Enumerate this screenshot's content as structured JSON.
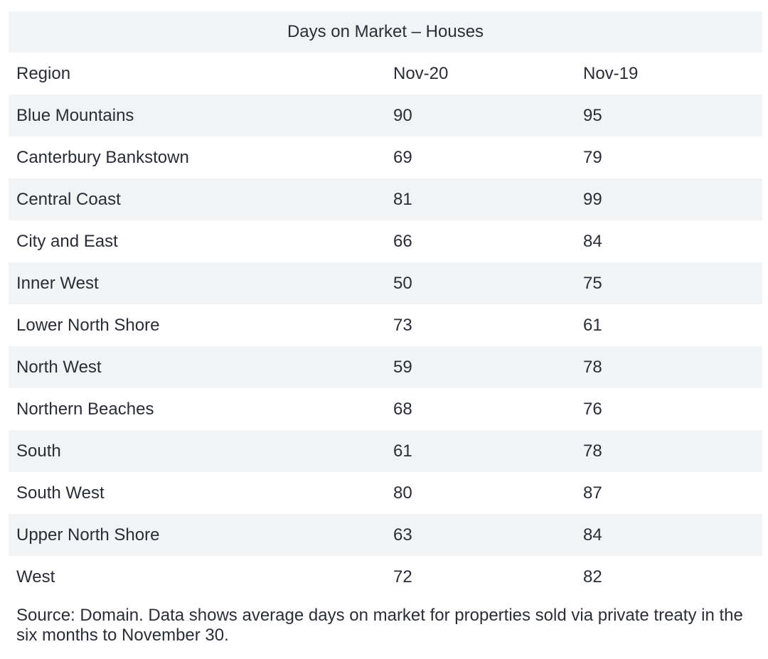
{
  "chart_data": {
    "type": "table",
    "title": "Days on Market – Houses",
    "columns": [
      "Region",
      "Nov-20",
      "Nov-19"
    ],
    "rows": [
      [
        "Blue Mountains",
        "90",
        "95"
      ],
      [
        "Canterbury Bankstown",
        "69",
        "79"
      ],
      [
        "Central Coast",
        "81",
        "99"
      ],
      [
        "City and East",
        "66",
        "84"
      ],
      [
        "Inner West",
        "50",
        "75"
      ],
      [
        "Lower North Shore",
        "73",
        "61"
      ],
      [
        "North West",
        "59",
        "78"
      ],
      [
        "Northern Beaches",
        "68",
        "76"
      ],
      [
        "South",
        "61",
        "78"
      ],
      [
        "South West",
        "80",
        "87"
      ],
      [
        "Upper North Shore",
        "63",
        "84"
      ],
      [
        "West",
        "72",
        "82"
      ]
    ],
    "source": "Source: Domain. Data shows average days on market for properties sold via private treaty in the six months to November 30."
  },
  "colors": {
    "shaded_row": "#f2f3f5",
    "text": "#2a2d35"
  }
}
